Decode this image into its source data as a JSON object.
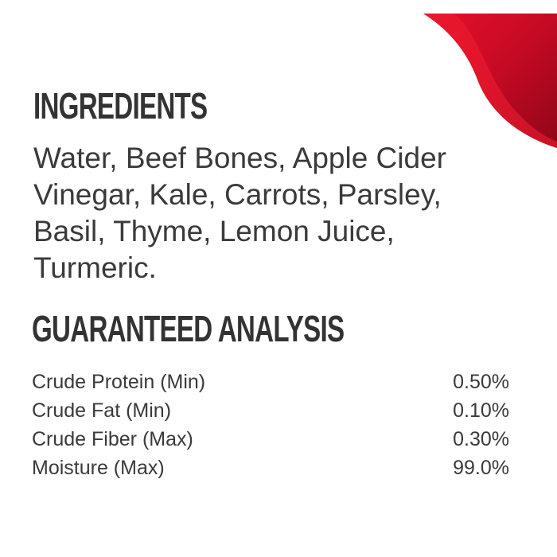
{
  "colors": {
    "accent": "#c8102e",
    "text": "#3a3a3a"
  },
  "ingredients": {
    "title": "INGREDIENTS",
    "text": "Water, Beef Bones, Apple Cider Vinegar, Kale, Carrots, Parsley, Basil, Thyme, Lemon Juice, Turmeric."
  },
  "analysis": {
    "title": "GUARANTEED ANALYSIS",
    "rows": [
      {
        "label": "Crude Protein (Min)",
        "value": "0.50%"
      },
      {
        "label": "Crude Fat (Min)",
        "value": "0.10%"
      },
      {
        "label": "Crude Fiber (Max)",
        "value": "0.30%"
      },
      {
        "label": "Moisture (Max)",
        "value": "99.0%"
      }
    ]
  }
}
